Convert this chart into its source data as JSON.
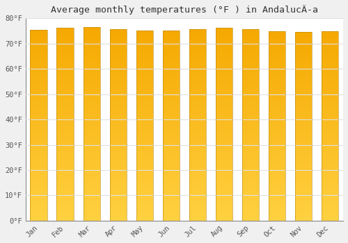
{
  "months": [
    "Jan",
    "Feb",
    "Mar",
    "Apr",
    "May",
    "Jun",
    "Jul",
    "Aug",
    "Sep",
    "Oct",
    "Nov",
    "Dec"
  ],
  "values": [
    75.5,
    76.3,
    76.6,
    75.6,
    75.2,
    75.0,
    75.7,
    76.1,
    75.7,
    74.8,
    74.5,
    74.8
  ],
  "title": "Average monthly temperatures (°F ) in AndalucÄ­a",
  "ylim": [
    0,
    80
  ],
  "bar_color_top": "#F5A800",
  "bar_color_bottom": "#FFD040",
  "bar_edge_color": "#B8860B",
  "plot_bg_color": "#ffffff",
  "fig_bg_color": "#f0f0f0",
  "grid_color": "#e0e0e0",
  "title_fontsize": 9.5,
  "tick_fontsize": 7.5,
  "bar_width": 0.65
}
